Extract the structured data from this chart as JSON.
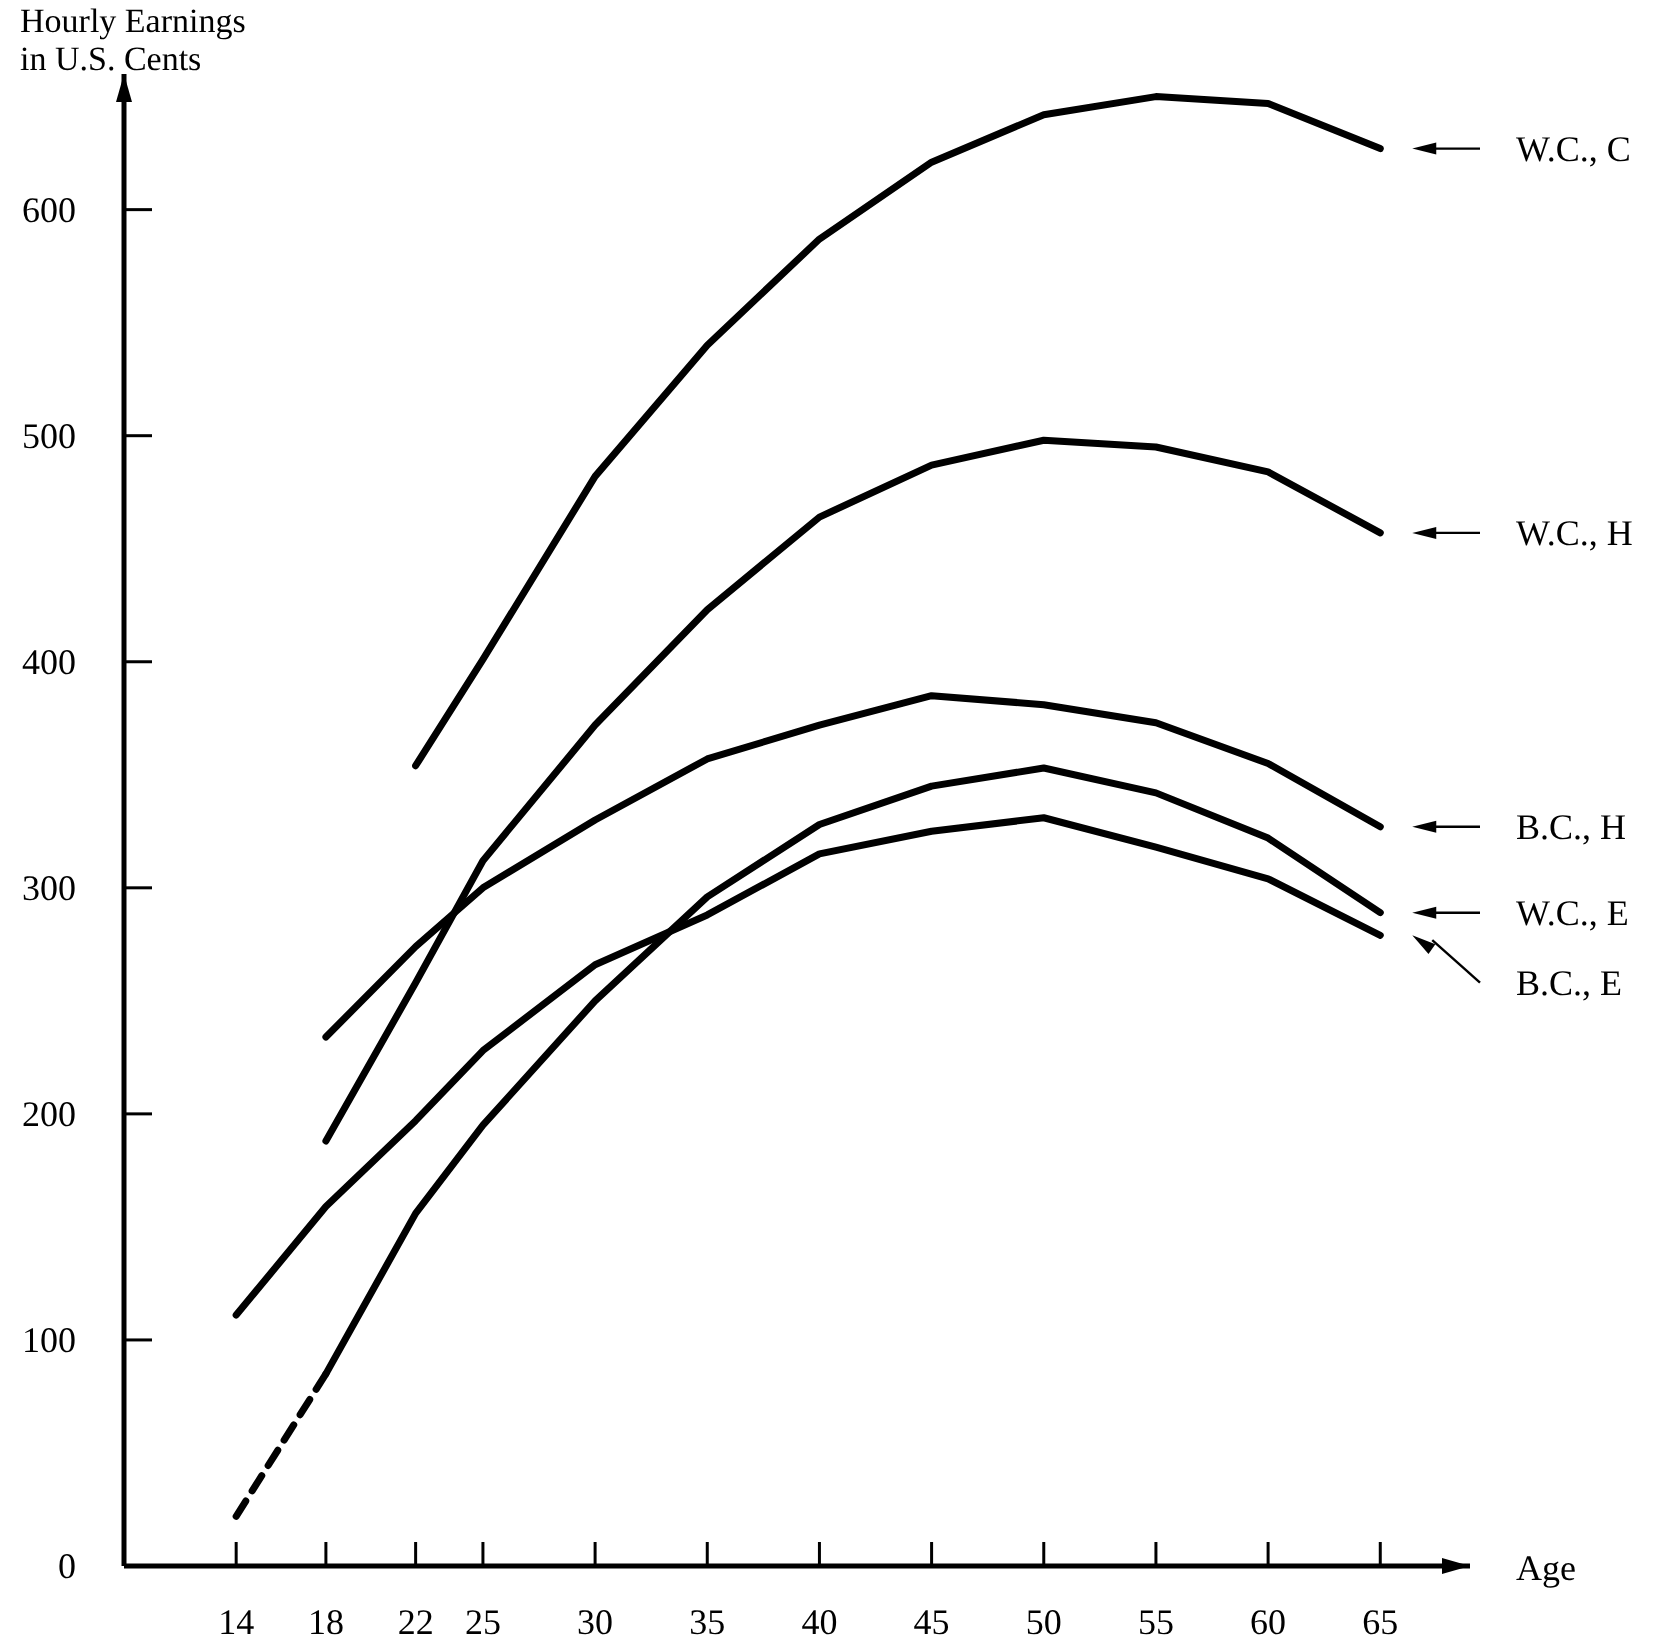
{
  "chart_data": {
    "type": "line",
    "xlabel": "Age",
    "ylabel": "Hourly Earnings\nin U.S. Cents",
    "xlim": [
      9,
      69
    ],
    "ylim": [
      0,
      660
    ],
    "xticks": [
      14,
      18,
      22,
      25,
      30,
      35,
      40,
      45,
      50,
      55,
      60,
      65
    ],
    "yticks": [
      0,
      100,
      200,
      300,
      400,
      500,
      600
    ],
    "grid": false,
    "legend": "right",
    "marker": "none",
    "line_style": "solid",
    "series": [
      {
        "name": "W.C., C",
        "color": "#000000",
        "x": [
          22,
          25,
          30,
          35,
          40,
          45,
          50,
          55,
          60,
          65
        ],
        "values": [
          354,
          401,
          482,
          540,
          587,
          621,
          642,
          650,
          647,
          627
        ]
      },
      {
        "name": "W.C., H",
        "color": "#000000",
        "x": [
          18,
          22,
          25,
          30,
          35,
          40,
          45,
          50,
          55,
          60,
          65
        ],
        "values": [
          188,
          258,
          312,
          372,
          423,
          464,
          487,
          498,
          495,
          484,
          457
        ]
      },
      {
        "name": "B.C., H",
        "color": "#000000",
        "x": [
          18,
          22,
          25,
          30,
          35,
          40,
          45,
          50,
          55,
          60,
          65
        ],
        "values": [
          234,
          274,
          300,
          330,
          357,
          372,
          385,
          381,
          373,
          355,
          327
        ]
      },
      {
        "name": "W.C., E",
        "color": "#000000",
        "x": [
          18,
          22,
          25,
          30,
          35,
          40,
          45,
          50,
          55,
          60,
          65
        ],
        "values": [
          85,
          156,
          195,
          250,
          296,
          328,
          345,
          353,
          342,
          322,
          289
        ]
      },
      {
        "color": "#000000",
        "line_style": "dashed",
        "x": [
          14,
          18
        ],
        "values": [
          22,
          85
        ]
      },
      {
        "name": "B.C., E",
        "color": "#000000",
        "x": [
          14,
          18,
          22,
          25,
          30,
          35,
          40,
          45,
          50,
          55,
          60,
          65
        ],
        "values": [
          111,
          159,
          197,
          228,
          266,
          288,
          315,
          325,
          331,
          318,
          304,
          279
        ]
      }
    ]
  }
}
